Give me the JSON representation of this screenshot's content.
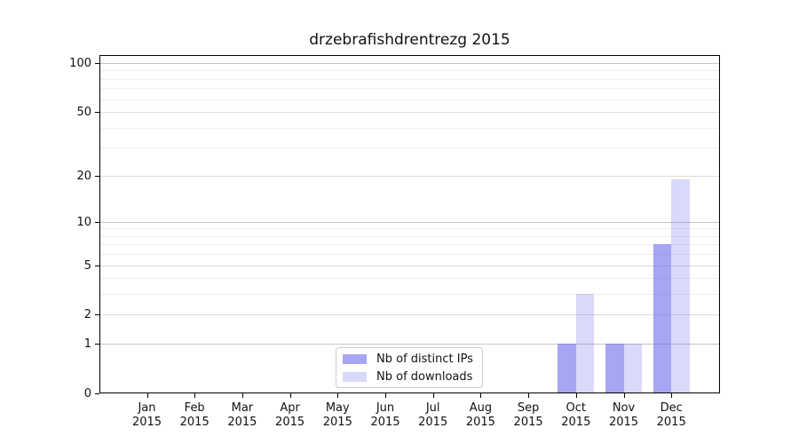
{
  "chart_data": {
    "type": "bar",
    "title": "drzebrafishdrentrezg 2015",
    "year_label": "2015",
    "categories": [
      "Jan",
      "Feb",
      "Mar",
      "Apr",
      "May",
      "Jun",
      "Jul",
      "Aug",
      "Sep",
      "Oct",
      "Nov",
      "Dec"
    ],
    "series": [
      {
        "name": "Nb of distinct IPs",
        "color": "rgba(96,96,235,0.56)",
        "color_hex_on_white": "#a6a6f4",
        "values": [
          0,
          0,
          0,
          0,
          0,
          0,
          0,
          0,
          0,
          1,
          1,
          7
        ]
      },
      {
        "name": "Nb of downloads",
        "color": "rgba(96,96,235,0.24)",
        "color_hex_on_white": "#d9d9fa",
        "values": [
          0,
          0,
          0,
          0,
          0,
          0,
          0,
          0,
          0,
          3,
          1,
          19
        ]
      }
    ],
    "yscale": "log(1+v)",
    "yticks": [
      0,
      1,
      2,
      5,
      10,
      20,
      50,
      100
    ],
    "ylim": [
      0,
      112
    ],
    "xlabel": "",
    "ylabel": "",
    "grid": "horizontal",
    "legend_position": "bottom-center-inside",
    "colors": {
      "axis": "#000000",
      "grid_major": "#c6c6c6",
      "grid_labeled": "#dcdcdc",
      "grid_minor": "#eeeeee",
      "text": "#111111",
      "legend_border": "#cccccc",
      "background": "#ffffff"
    }
  }
}
